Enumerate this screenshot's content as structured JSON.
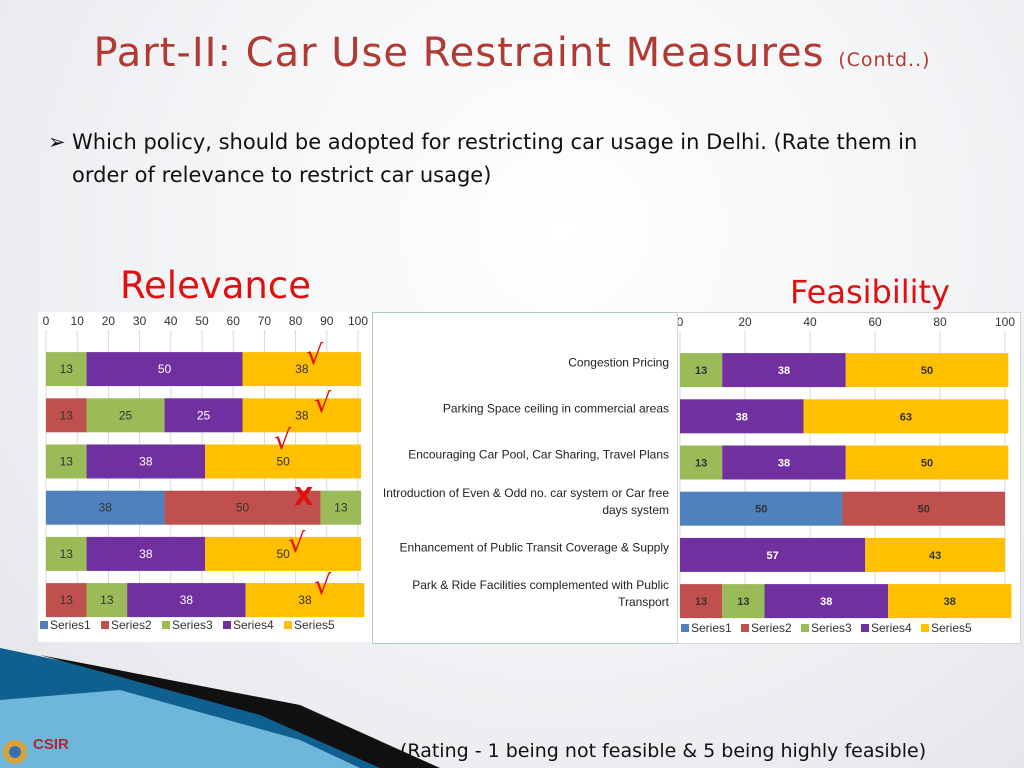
{
  "title": {
    "main": "Part-II: Car Use Restraint Measures",
    "sub": "(Contd..)"
  },
  "question": "Which policy, should be adopted for restricting car usage in Delhi. (Rate them in order of relevance to restrict car usage)",
  "headings": {
    "relevance": "Relevance",
    "feasibility": "Feasibility"
  },
  "footer_note": "(Rating - 1 being not feasible & 5 being highly feasible)",
  "logo": {
    "text": "CSIR"
  },
  "marks": {
    "tick": "√",
    "cross": "X"
  },
  "colors": {
    "series1": "#4f81bd",
    "series2": "#c0504d",
    "series3": "#9bbb59",
    "series4": "#7030a0",
    "series5": "#ffc000",
    "heading": "#e01010",
    "title": "#b13a33"
  },
  "chart_data": [
    {
      "type": "bar",
      "orientation": "horizontal-stacked",
      "title": "Relevance",
      "xlim": [
        0,
        100
      ],
      "x_ticks": [
        "0",
        "10",
        "20",
        "30",
        "40",
        "50",
        "60",
        "70",
        "80",
        "90",
        "100"
      ],
      "categories": [
        "Congestion Pricing",
        "Parking Space ceiling in commercial areas",
        "Encouraging Car Pool, Car Sharing, Travel Plans",
        "Introduction of Even & Odd no. car system or Car free days system",
        "Enhancement of Public Transit Coverage & Supply",
        "Park & Ride Facilities complemented with Public Transport"
      ],
      "series": [
        {
          "name": "Series1",
          "values": [
            0,
            0,
            0,
            38,
            0,
            0
          ]
        },
        {
          "name": "Series2",
          "values": [
            0,
            13,
            0,
            50,
            0,
            13
          ]
        },
        {
          "name": "Series3",
          "values": [
            13,
            25,
            13,
            13,
            13,
            13
          ]
        },
        {
          "name": "Series4",
          "values": [
            50,
            25,
            38,
            0,
            38,
            38
          ]
        },
        {
          "name": "Series5",
          "values": [
            38,
            38,
            50,
            0,
            50,
            38
          ]
        }
      ],
      "legend": "bottom",
      "marks": [
        "tick",
        "tick",
        "tick",
        "cross",
        "tick",
        "tick"
      ]
    },
    {
      "type": "bar",
      "orientation": "horizontal-stacked",
      "title": "Feasibility",
      "xlim": [
        0,
        100
      ],
      "x_ticks": [
        "0",
        "20",
        "40",
        "60",
        "80",
        "100"
      ],
      "categories": [
        "Congestion Pricing",
        "Parking Space ceiling in commercial areas",
        "Encouraging Car Pool, Car Sharing, Travel Plans",
        "Introduction of Even & Odd no. car system or Car free days system",
        "Enhancement of Public Transit Coverage & Supply",
        "Park & Ride Facilities complemented with Public Transport"
      ],
      "series": [
        {
          "name": "Series1",
          "values": [
            0,
            0,
            0,
            50,
            0,
            0
          ]
        },
        {
          "name": "Series2",
          "values": [
            0,
            0,
            0,
            50,
            0,
            13
          ]
        },
        {
          "name": "Series3",
          "values": [
            13,
            0,
            13,
            0,
            0,
            13
          ]
        },
        {
          "name": "Series4",
          "values": [
            38,
            38,
            38,
            0,
            57,
            38
          ]
        },
        {
          "name": "Series5",
          "values": [
            50,
            63,
            50,
            0,
            43,
            38
          ]
        }
      ],
      "legend": "bottom"
    }
  ]
}
